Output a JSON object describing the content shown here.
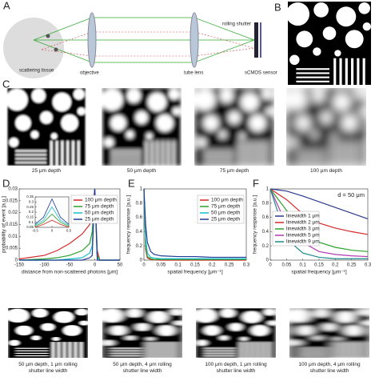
{
  "panel_labels": [
    "A",
    "B",
    "C",
    "D",
    "E",
    "F"
  ],
  "schematic": {
    "tissue": "scattering tissue",
    "objective": "objective",
    "tube_lens": "tube lens",
    "rolling_shutter": "rolling shutter",
    "sensor": "sCMOS sensor"
  },
  "depth_images": {
    "captions": [
      "25 μm depth",
      "50 μm depth",
      "75 μm depth",
      "100 μm depth"
    ]
  },
  "rolling_images": {
    "captions": [
      "50 μm depth, 1 μm rolling shutter line width",
      "50 μm depth, 4 μm rolling shutter line width",
      "100 μm depth, 1 μm rolling shutter line width",
      "100 μm depth, 4 μm rolling shutter line width"
    ]
  },
  "chart_data": [
    {
      "type": "line",
      "xlabel": "distance from non-scattered photons [μm]",
      "ylabel": "probability of event [a.u.]",
      "x": [
        -150,
        -100,
        -75,
        -50,
        -25,
        -10,
        -5,
        0,
        5,
        10,
        50
      ],
      "series": [
        {
          "name": "100 μm depth",
          "color": "#d62728",
          "values": [
            0.0005,
            0.002,
            0.004,
            0.007,
            0.011,
            0.015,
            0.02,
            0.03,
            0.004,
            0,
            0
          ]
        },
        {
          "name": "75 μm depth",
          "color": "#2ca02c",
          "values": [
            0,
            0.0005,
            0.001,
            0.002,
            0.004,
            0.007,
            0.012,
            0.03,
            0.002,
            0,
            0
          ]
        },
        {
          "name": "50 μm depth",
          "color": "#17becf",
          "values": [
            0,
            0,
            0,
            0.0005,
            0.001,
            0.003,
            0.006,
            0.03,
            0.001,
            0,
            0
          ]
        },
        {
          "name": "25 μm depth",
          "color": "#1f3a93",
          "values": [
            0,
            0,
            0,
            0,
            0,
            0.001,
            0.002,
            0.03,
            0,
            0,
            0
          ]
        }
      ],
      "xlim": [
        -150,
        50
      ],
      "ylim": [
        0,
        0.03
      ],
      "xticks": [
        -150,
        -100,
        -50,
        0,
        50
      ],
      "yticks": [
        0,
        0.005,
        0.01,
        0.015,
        0.02,
        0.025,
        0.03
      ],
      "legend": "upper right"
    },
    {
      "type": "line",
      "x": [
        -0.5,
        -0.25,
        0,
        0.25,
        0.5
      ],
      "series": [
        {
          "color": "#1f3a93",
          "values": [
            0.08,
            0.15,
            0.33,
            0.15,
            0.08
          ]
        },
        {
          "color": "#17becf",
          "values": [
            0.07,
            0.12,
            0.25,
            0.12,
            0.07
          ]
        },
        {
          "color": "#2ca02c",
          "values": [
            0.06,
            0.1,
            0.18,
            0.1,
            0.06
          ]
        },
        {
          "color": "#d62728",
          "values": [
            0.05,
            0.08,
            0.12,
            0.08,
            0.05
          ]
        }
      ],
      "xlim": [
        -0.5,
        0.5
      ],
      "ylim": [
        0.05,
        0.35
      ],
      "xticks": [
        -0.5,
        0,
        0.5
      ],
      "yticks": [
        0.05,
        0.1,
        0.15,
        0.2,
        0.25,
        0.3,
        0.35
      ]
    },
    {
      "type": "line",
      "xlabel": "spatial frequency [μm⁻¹]",
      "ylabel": "frequency response [a.u.]",
      "x": [
        0,
        0.005,
        0.01,
        0.02,
        0.03,
        0.05,
        0.1,
        0.15,
        0.2,
        0.25,
        0.3
      ],
      "series": [
        {
          "name": "100 μm depth",
          "color": "#d62728",
          "values": [
            1,
            0.15,
            0.03,
            0.01,
            0.005,
            0,
            0,
            0,
            0,
            0,
            0
          ]
        },
        {
          "name": "75 μm depth",
          "color": "#2ca02c",
          "values": [
            1,
            0.2,
            0.05,
            0.02,
            0.01,
            0.01,
            0.01,
            0.01,
            0.01,
            0.01,
            0.01
          ]
        },
        {
          "name": "50 μm depth",
          "color": "#17becf",
          "values": [
            1,
            0.3,
            0.1,
            0.04,
            0.03,
            0.02,
            0.02,
            0.02,
            0.02,
            0.02,
            0.02
          ]
        },
        {
          "name": "25 μm depth",
          "color": "#1f3a93",
          "values": [
            1,
            0.5,
            0.25,
            0.12,
            0.08,
            0.06,
            0.05,
            0.05,
            0.04,
            0.04,
            0.04
          ]
        }
      ],
      "xlim": [
        0,
        0.3
      ],
      "ylim": [
        0,
        1
      ],
      "xticks": [
        0,
        0.05,
        0.1,
        0.15,
        0.2,
        0.25,
        0.3
      ],
      "yticks": [
        0,
        0.2,
        0.4,
        0.6,
        0.8,
        1
      ],
      "legend": "upper right"
    },
    {
      "type": "line",
      "xlabel": "spatial frequency [μm⁻¹]",
      "ylabel": "frequency response [a.u.]",
      "annotation": "d = 50 μm",
      "x": [
        0,
        0.05,
        0.1,
        0.15,
        0.2,
        0.25,
        0.3
      ],
      "series": [
        {
          "name": "linewidth 1 μm",
          "color": "#2b3a8c",
          "values": [
            1,
            0.97,
            0.9,
            0.82,
            0.74,
            0.66,
            0.58
          ]
        },
        {
          "name": "linewidth 2 μm",
          "color": "#d62728",
          "values": [
            1,
            0.85,
            0.65,
            0.52,
            0.45,
            0.4,
            0.36
          ]
        },
        {
          "name": "linewidth 3 μm",
          "color": "#2ca02c",
          "values": [
            1,
            0.7,
            0.4,
            0.25,
            0.18,
            0.14,
            0.12
          ]
        },
        {
          "name": "linewidth 5 μm",
          "color": "#b03ab0",
          "values": [
            1,
            0.5,
            0.25,
            0.12,
            0.08,
            0.06,
            0.05
          ]
        },
        {
          "name": "linewidth 9 μm",
          "color": "#1a8a8a",
          "values": [
            1,
            0.3,
            0.1,
            0.04,
            0.02,
            0.02,
            0.02
          ]
        }
      ],
      "xlim": [
        0,
        0.3
      ],
      "ylim": [
        0,
        1
      ],
      "xticks": [
        0,
        0.05,
        0.1,
        0.15,
        0.2,
        0.25,
        0.3
      ],
      "yticks": [
        0,
        0.2,
        0.4,
        0.6,
        0.8,
        1
      ],
      "legend": "lower left"
    }
  ]
}
